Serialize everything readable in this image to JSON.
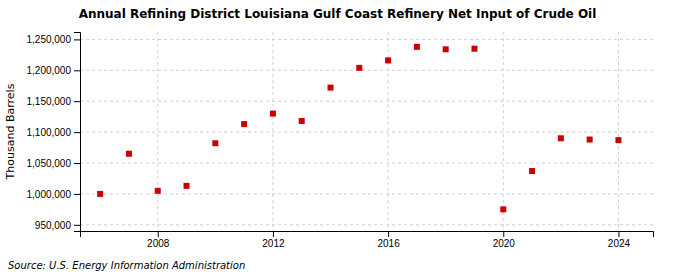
{
  "chart_data": {
    "type": "scatter",
    "title": "Annual Refining District Louisiana Gulf Coast Refinery Net Input of Crude Oil",
    "ylabel": "Thousand Barrels",
    "source": "Source: U.S. Energy Information Administration",
    "x": [
      2006,
      2007,
      2008,
      2009,
      2010,
      2011,
      2012,
      2013,
      2014,
      2015,
      2016,
      2017,
      2018,
      2019,
      2020,
      2021,
      2022,
      2023,
      2024
    ],
    "values": [
      1000000,
      1065000,
      1005000,
      1013000,
      1082000,
      1113000,
      1130000,
      1118000,
      1172000,
      1204000,
      1216000,
      1238000,
      1234000,
      1235000,
      975000,
      1037000,
      1090000,
      1088000,
      1087000
    ],
    "color": "#cc0000",
    "marker": "square",
    "xlim": [
      2005.3,
      2025.2
    ],
    "xticks": [
      2008,
      2012,
      2016,
      2020,
      2024
    ],
    "ylim": [
      940000,
      1262000
    ],
    "yticks": [
      {
        "value": 950000,
        "label": "950,000"
      },
      {
        "value": 1000000,
        "label": "1,000,000"
      },
      {
        "value": 1050000,
        "label": "1,050,000"
      },
      {
        "value": 1100000,
        "label": "1,100,000"
      },
      {
        "value": 1150000,
        "label": "1,150,000"
      },
      {
        "value": 1200000,
        "label": "1,200,000"
      },
      {
        "value": 1250000,
        "label": "1,250,000"
      }
    ],
    "grid": true
  }
}
